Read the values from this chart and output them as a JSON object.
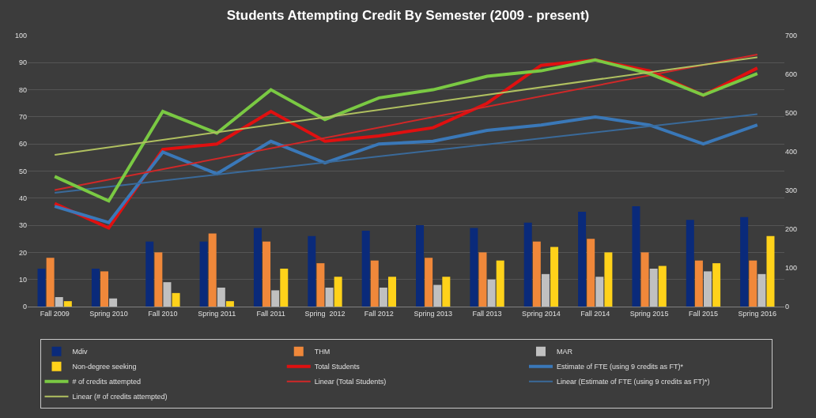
{
  "chart_data": {
    "type": "bar",
    "title": "Students Attempting Credit By Semester (2009 - present)",
    "categories": [
      "Fall 2009",
      "Spring 2010",
      "Fall 2010",
      "Spring 2011",
      "Fall 2011",
      "Spring  2012",
      "Fall 2012",
      "Spring 2013",
      "Fall 2013",
      "Spring 2014",
      "Fall 2014",
      "Spring 2015",
      "Fall 2015",
      "Spring 2016"
    ],
    "series": [
      {
        "name": "Mdiv",
        "color": "#0a2a7a",
        "values": [
          14,
          14,
          24,
          24,
          29,
          26,
          28,
          30,
          29,
          31,
          35,
          37,
          32,
          33
        ]
      },
      {
        "name": "THM",
        "color": "#f0883a",
        "values": [
          18,
          13,
          20,
          27,
          24,
          16,
          17,
          18,
          20,
          24,
          25,
          20,
          17,
          17
        ]
      },
      {
        "name": "MAR",
        "color": "#c0c0c0",
        "values": [
          3.5,
          3,
          9,
          7,
          6,
          7,
          7,
          8,
          10,
          12,
          11,
          14,
          13,
          12
        ]
      },
      {
        "name": "Non-degree seeking",
        "color": "#ffd21a",
        "values": [
          2,
          0,
          5,
          2,
          14,
          11,
          11,
          11,
          17,
          22,
          20,
          15,
          16,
          26
        ]
      },
      {
        "name": "Total Students",
        "type": "line",
        "color": "#e01010",
        "values": [
          38,
          29,
          58,
          60,
          72,
          61,
          63,
          66,
          75,
          89,
          91,
          87,
          78,
          88
        ]
      },
      {
        "name": "Estimate of FTE (using 9 credits as FT)*",
        "type": "line",
        "color": "#3a78b8",
        "values": [
          37,
          31,
          57,
          49,
          61,
          53,
          60,
          61,
          65,
          67,
          70,
          67,
          60,
          67
        ]
      },
      {
        "name": "# of credits attempted",
        "type": "line",
        "axis": "y2",
        "color": "#7ac943",
        "values": [
          336,
          273,
          504,
          448,
          560,
          483,
          539,
          560,
          595,
          609,
          637,
          602,
          546,
          602
        ]
      },
      {
        "name": "Linear (Total Students)",
        "type": "line",
        "color": "#d02828",
        "x": [
          "Fall 2009",
          "Spring 2016"
        ],
        "values": [
          43,
          93
        ]
      },
      {
        "name": "Linear (Estimate of FTE (using 9 credits as FT)*)",
        "type": "line",
        "color": "#3a6a9a",
        "x": [
          "Fall 2009",
          "Spring 2016"
        ],
        "values": [
          42,
          71
        ]
      },
      {
        "name": "Linear (# of credits attempted)",
        "type": "line",
        "axis": "y2",
        "color": "#b0c060",
        "x": [
          "Fall 2009",
          "Spring 2016"
        ],
        "values": [
          392,
          644
        ]
      }
    ],
    "ylim": [
      0,
      100
    ],
    "yticks": [
      0,
      10,
      20,
      30,
      40,
      50,
      60,
      70,
      80,
      90,
      100
    ],
    "y2lim": [
      0,
      700
    ],
    "y2ticks": [
      0,
      100,
      200,
      300,
      400,
      500,
      600,
      700
    ],
    "grid": "y",
    "legend": "bottom"
  }
}
